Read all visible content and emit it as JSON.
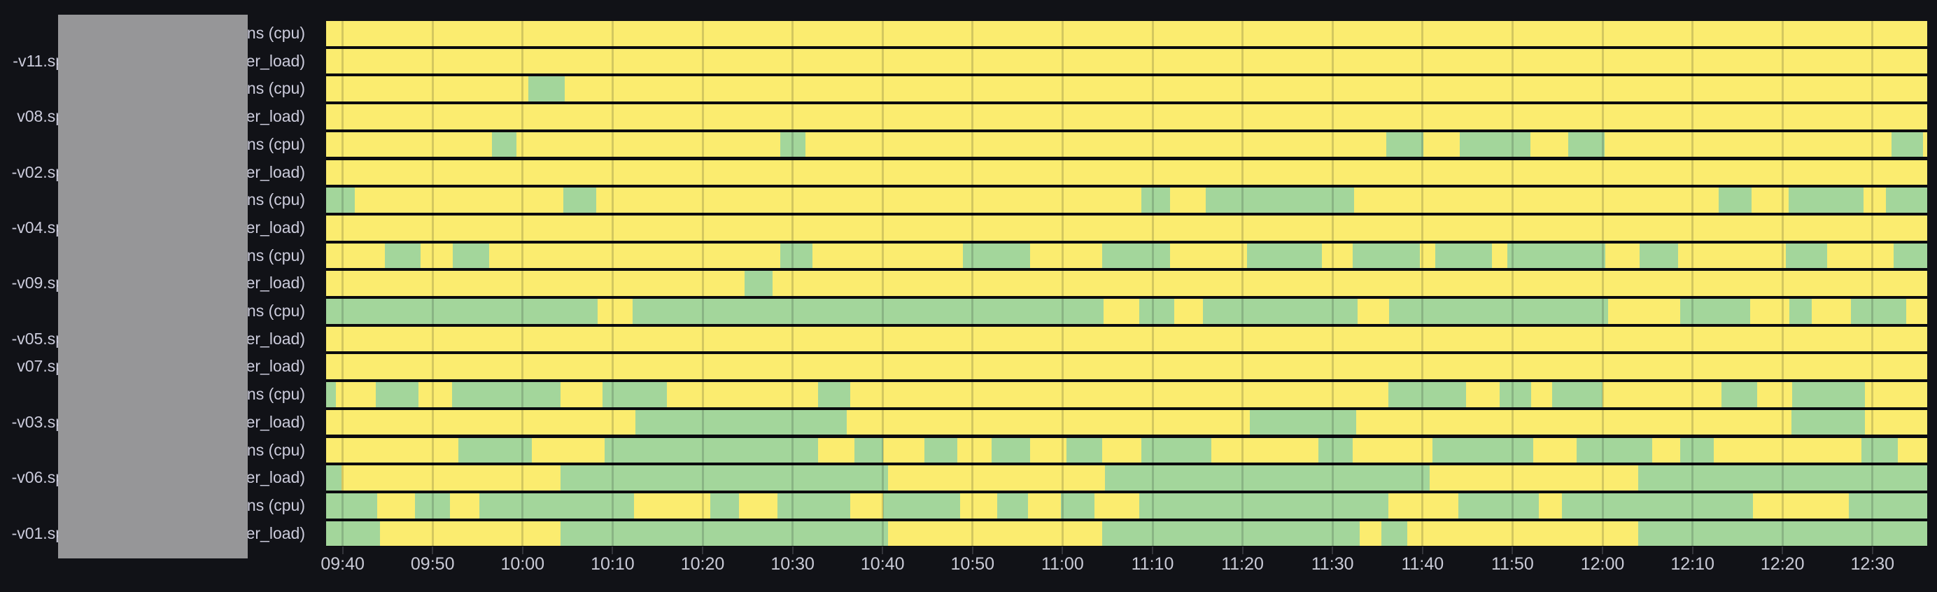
{
  "colors": {
    "background": "#111217",
    "plot_track": "#0a0b0e",
    "state_yellow": "#FBEC6F",
    "state_green": "#A3D69B",
    "row_label_text": "#CCCCDC",
    "axis_label_text": "#C9CAD6",
    "axis_tick": "#33343a",
    "redaction_gray": "#969698"
  },
  "redaction_overlay": {
    "present": true
  },
  "chart_data": {
    "type": "heatmap",
    "subtype": "state-timeline",
    "title": "",
    "xlabel": "",
    "ylabel": "",
    "grid": "off",
    "legend": "none",
    "time_span_minutes": 178,
    "x_axis_start_offset_minutes": 1.84,
    "x_tick_interval_minutes": 10,
    "x_ticks": [
      "09:40",
      "09:50",
      "10:00",
      "10:10",
      "10:20",
      "10:30",
      "10:40",
      "10:50",
      "11:00",
      "11:10",
      "11:20",
      "11:30",
      "11:40",
      "11:50",
      "12:00",
      "12:10",
      "12:20",
      "12:30"
    ],
    "states": {
      "default": "yellow",
      "yellow": "#FBEC6F",
      "green": "#A3D69B"
    },
    "series": [
      {
        "label_prefix": "",
        "label_suffix": "ns (cpu)",
        "green_intervals_min": []
      },
      {
        "label_prefix": "-v11.sp",
        "label_suffix": "er_load)",
        "green_intervals_min": []
      },
      {
        "label_prefix": "",
        "label_suffix": "ns (cpu)",
        "green_intervals_min": [
          [
            22.5,
            26.5
          ]
        ]
      },
      {
        "label_prefix": "v08.sp",
        "label_suffix": "er_load)",
        "green_intervals_min": []
      },
      {
        "label_prefix": "",
        "label_suffix": "ns (cpu)",
        "green_intervals_min": [
          [
            18.4,
            21.2
          ],
          [
            50.5,
            53.3
          ],
          [
            117.9,
            122.0
          ],
          [
            126.0,
            133.9
          ],
          [
            138.1,
            142.1
          ],
          [
            174.0,
            177.5
          ]
        ]
      },
      {
        "label_prefix": "-v02.sp",
        "label_suffix": "er_load)",
        "green_intervals_min": []
      },
      {
        "label_prefix": "",
        "label_suffix": "ns (cpu)",
        "green_intervals_min": [
          [
            0,
            3.2
          ],
          [
            26.4,
            30.0
          ],
          [
            90.6,
            93.8
          ],
          [
            97.8,
            114.3
          ],
          [
            154.8,
            158.5
          ],
          [
            162.6,
            170.9
          ],
          [
            173.4,
            178
          ]
        ]
      },
      {
        "label_prefix": "-v04.sp",
        "label_suffix": "er_load)",
        "green_intervals_min": []
      },
      {
        "label_prefix": "",
        "label_suffix": "ns (cpu)",
        "green_intervals_min": [
          [
            6.5,
            10.5
          ],
          [
            14.1,
            18.1
          ],
          [
            50.5,
            54.1
          ],
          [
            70.8,
            78.3
          ],
          [
            86.3,
            93.8
          ],
          [
            102.4,
            110.7
          ],
          [
            114.1,
            121.6
          ],
          [
            123.3,
            129.6
          ],
          [
            131.3,
            142.2
          ],
          [
            146.0,
            150.3
          ],
          [
            162.3,
            166.9
          ],
          [
            174.3,
            178
          ]
        ]
      },
      {
        "label_prefix": "-v09.sp",
        "label_suffix": "er_load)",
        "green_intervals_min": [
          [
            46.5,
            49.6
          ]
        ]
      },
      {
        "label_prefix": "",
        "label_suffix": "ns (cpu)",
        "green_intervals_min": [
          [
            0,
            30.2
          ],
          [
            34.1,
            86.4
          ],
          [
            90.4,
            94.3
          ],
          [
            97.5,
            114.7
          ],
          [
            118.2,
            142.5
          ],
          [
            150.5,
            158.3
          ],
          [
            162.7,
            165.2
          ],
          [
            169.5,
            175.7
          ]
        ]
      },
      {
        "label_prefix": "-v05.sp",
        "label_suffix": "er_load)",
        "green_intervals_min": []
      },
      {
        "label_prefix": "v07.sp",
        "label_suffix": "er_load)",
        "green_intervals_min": []
      },
      {
        "label_prefix": "",
        "label_suffix": "ns (cpu)",
        "green_intervals_min": [
          [
            0,
            1.1
          ],
          [
            5.5,
            10.3
          ],
          [
            14.0,
            26.1
          ],
          [
            30.7,
            37.9
          ],
          [
            54.7,
            58.3
          ],
          [
            118.1,
            126.7
          ],
          [
            130.5,
            134.0
          ],
          [
            136.3,
            141.9
          ],
          [
            155.1,
            159.1
          ],
          [
            163.0,
            171.1
          ]
        ]
      },
      {
        "label_prefix": "-v03.sp",
        "label_suffix": "er_load)",
        "green_intervals_min": [
          [
            34.4,
            57.9
          ],
          [
            102.7,
            114.5
          ],
          [
            162.9,
            171.1
          ]
        ]
      },
      {
        "label_prefix": "",
        "label_suffix": "ns (cpu)",
        "green_intervals_min": [
          [
            14.7,
            22.9
          ],
          [
            31.0,
            54.7
          ],
          [
            58.7,
            61.9
          ],
          [
            66.5,
            70.2
          ],
          [
            74.0,
            78.3
          ],
          [
            82.3,
            86.3
          ],
          [
            90.6,
            98.4
          ],
          [
            110.3,
            114.1
          ],
          [
            123.0,
            134.2
          ],
          [
            139.0,
            147.4
          ],
          [
            150.5,
            154.3
          ],
          [
            170.7,
            174.7
          ]
        ]
      },
      {
        "label_prefix": "-v06.sp",
        "label_suffix": "er_load)",
        "green_intervals_min": [
          [
            0,
            1.7
          ],
          [
            26.1,
            62.5
          ],
          [
            86.6,
            122.7
          ],
          [
            145.9,
            178
          ]
        ]
      },
      {
        "label_prefix": "",
        "label_suffix": "ns (cpu)",
        "green_intervals_min": [
          [
            0,
            5.7
          ],
          [
            9.9,
            13.8
          ],
          [
            17.0,
            34.2
          ],
          [
            42.7,
            45.9
          ],
          [
            50.2,
            58.3
          ],
          [
            61.9,
            70.5
          ],
          [
            74.6,
            78.0
          ],
          [
            81.7,
            85.4
          ],
          [
            90.4,
            118.1
          ],
          [
            125.9,
            134.8
          ],
          [
            137.4,
            158.6
          ],
          [
            169.3,
            178
          ]
        ]
      },
      {
        "label_prefix": "-v01.sp",
        "label_suffix": "er_load)",
        "green_intervals_min": [
          [
            0,
            6.0
          ],
          [
            26.1,
            62.5
          ],
          [
            86.3,
            114.9
          ],
          [
            117.3,
            120.2
          ],
          [
            145.9,
            178
          ]
        ]
      }
    ]
  }
}
